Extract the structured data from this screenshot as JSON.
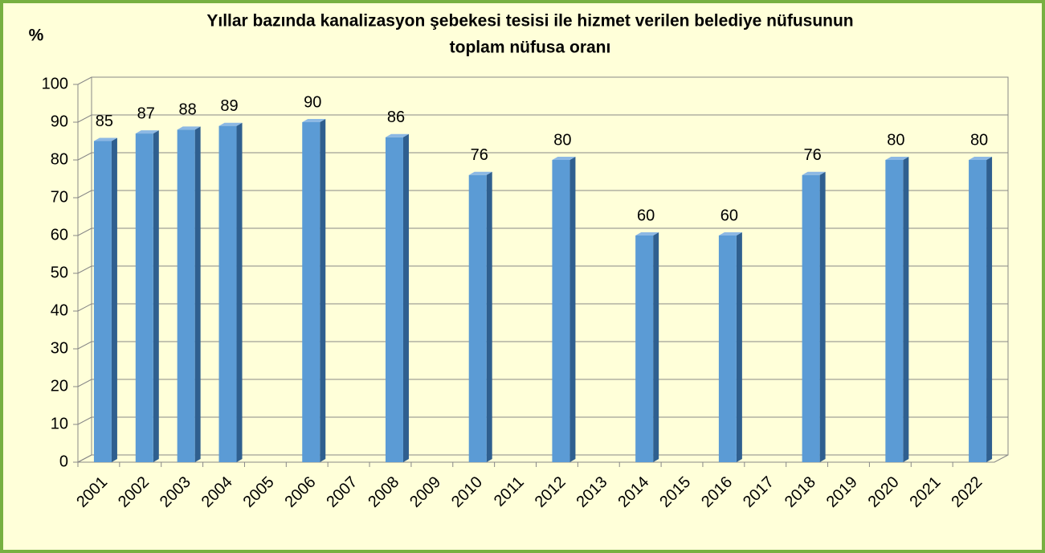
{
  "chart_data": {
    "type": "bar3d",
    "title": [
      "Yıllar bazında kanalizasyon şebekesi tesisi ile hizmet verilen belediye nüfusunun",
      "toplam nüfusa oranı"
    ],
    "ylabel": "%",
    "categories": [
      "2001",
      "2002",
      "2003",
      "2004",
      "2005",
      "2006",
      "2007",
      "2008",
      "2009",
      "2010",
      "2011",
      "2012",
      "2013",
      "2014",
      "2015",
      "2016",
      "2017",
      "2018",
      "2019",
      "2020",
      "2021",
      "2022"
    ],
    "values": [
      85,
      87,
      88,
      89,
      null,
      90,
      null,
      86,
      null,
      76,
      null,
      80,
      null,
      60,
      null,
      60,
      null,
      76,
      null,
      80,
      null,
      80
    ],
    "color": "#5b9bd5",
    "ylim": [
      0,
      100
    ],
    "yticks": [
      0,
      10,
      20,
      30,
      40,
      50,
      60,
      70,
      80,
      90,
      100
    ],
    "grid": true
  }
}
